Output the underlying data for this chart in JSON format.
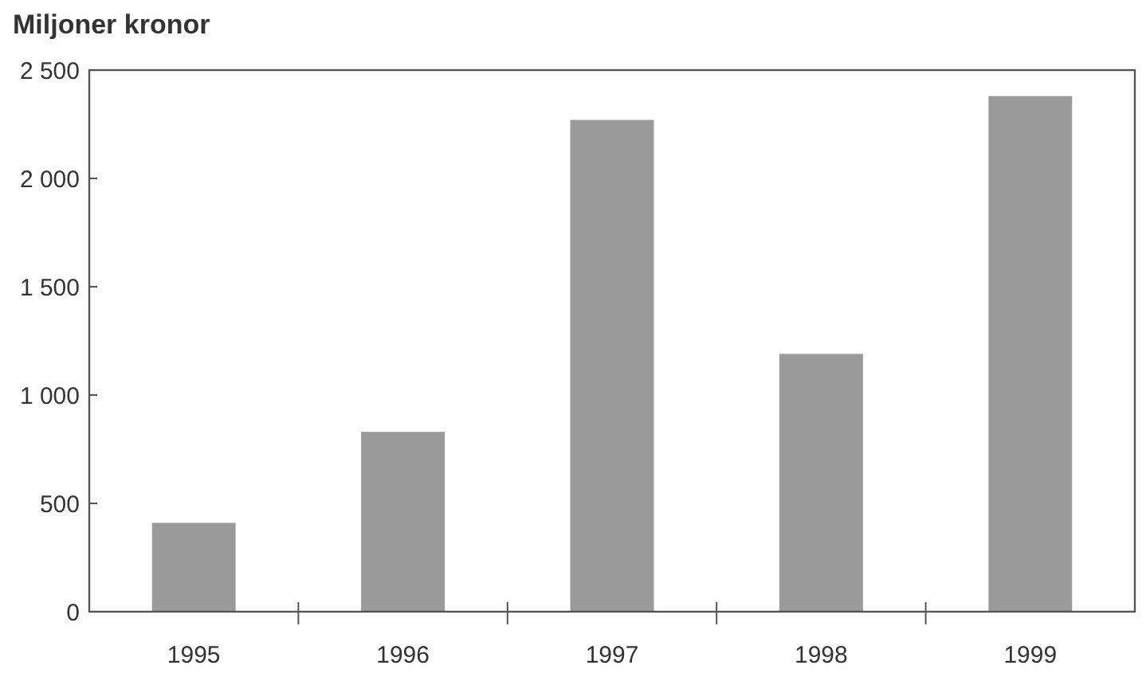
{
  "chart_data": {
    "type": "bar",
    "title": "Miljoner kronor",
    "categories": [
      "1995",
      "1996",
      "1997",
      "1998",
      "1999"
    ],
    "values": [
      410,
      830,
      2270,
      1190,
      2380
    ],
    "color": "#9a9a9a",
    "ylim": [
      0,
      2500
    ],
    "yticks": [
      0,
      500,
      {
        "value": 1000,
        "label": "1 000"
      },
      {
        "value": 1500,
        "label": "1 500"
      },
      {
        "value": 2000,
        "label": "2 000"
      },
      {
        "value": 2500,
        "label": "2 500"
      }
    ]
  }
}
